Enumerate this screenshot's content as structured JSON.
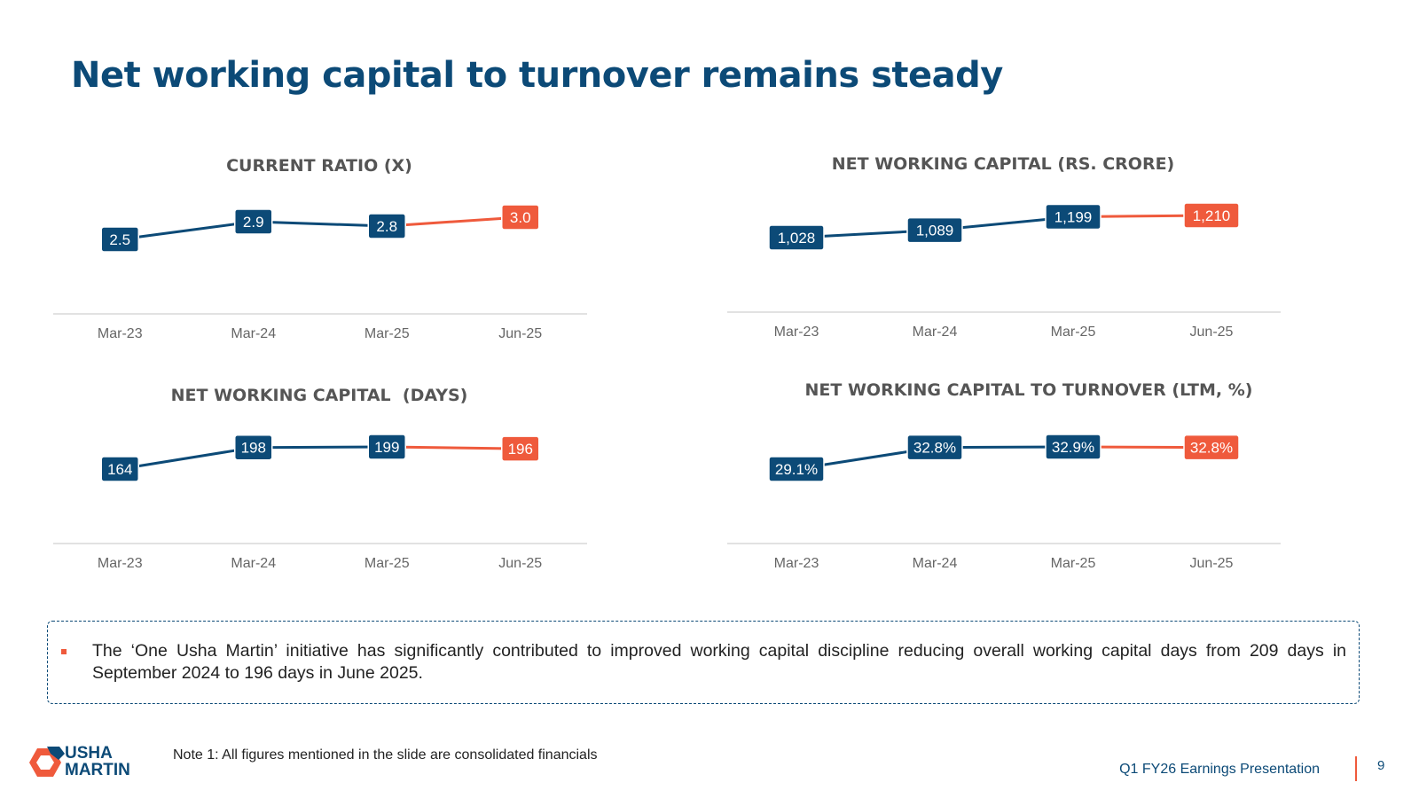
{
  "title": "Net working capital to turnover remains steady",
  "colors": {
    "historic": "#0c4a77",
    "latest": "#ef5a3c",
    "axis": "#d9d9d9",
    "tick": "#666666"
  },
  "charts": [
    {
      "title": "CURRENT RATIO (X)"
    },
    {
      "title": "NET WORKING CAPITAL (RS. CRORE)"
    },
    {
      "title": "NET WORKING CAPITAL  (DAYS)"
    },
    {
      "title": "NET WORKING CAPITAL TO TURNOVER (LTM, %)"
    }
  ],
  "chart_data": [
    {
      "type": "line",
      "title": "CURRENT RATIO (X)",
      "categories": [
        "Mar-23",
        "Mar-24",
        "Mar-25",
        "Jun-25"
      ],
      "values": [
        2.5,
        2.9,
        2.8,
        3.0
      ],
      "labels": [
        "2.5",
        "2.9",
        "2.8",
        "3.0"
      ],
      "highlight_last": true,
      "grid": false
    },
    {
      "type": "line",
      "title": "NET WORKING CAPITAL (RS. CRORE)",
      "categories": [
        "Mar-23",
        "Mar-24",
        "Mar-25",
        "Jun-25"
      ],
      "values": [
        1028,
        1089,
        1199,
        1210
      ],
      "labels": [
        "1,028",
        "1,089",
        "1,199",
        "1,210"
      ],
      "highlight_last": true,
      "grid": false
    },
    {
      "type": "line",
      "title": "NET WORKING CAPITAL  (DAYS)",
      "categories": [
        "Mar-23",
        "Mar-24",
        "Mar-25",
        "Jun-25"
      ],
      "values": [
        164,
        198,
        199,
        196
      ],
      "labels": [
        "164",
        "198",
        "199",
        "196"
      ],
      "highlight_last": true,
      "grid": false
    },
    {
      "type": "line",
      "title": "NET WORKING CAPITAL TO TURNOVER (LTM, %)",
      "categories": [
        "Mar-23",
        "Mar-24",
        "Mar-25",
        "Jun-25"
      ],
      "values": [
        29.1,
        32.8,
        32.9,
        32.8
      ],
      "labels": [
        "29.1%",
        "32.8%",
        "32.9%",
        "32.8%"
      ],
      "highlight_last": true,
      "grid": false
    }
  ],
  "callout": {
    "text": "The ‘One Usha Martin’ initiative has significantly contributed to improved working capital discipline reducing overall working capital days from 209 days in September 2024 to 196 days in June 2025."
  },
  "logo": {
    "line1": "USHA",
    "line2": "MARTIN"
  },
  "footer": {
    "note": "Note 1: All figures mentioned in the slide are consolidated financials",
    "presentation": "Q1 FY26 Earnings Presentation",
    "page": "9"
  }
}
